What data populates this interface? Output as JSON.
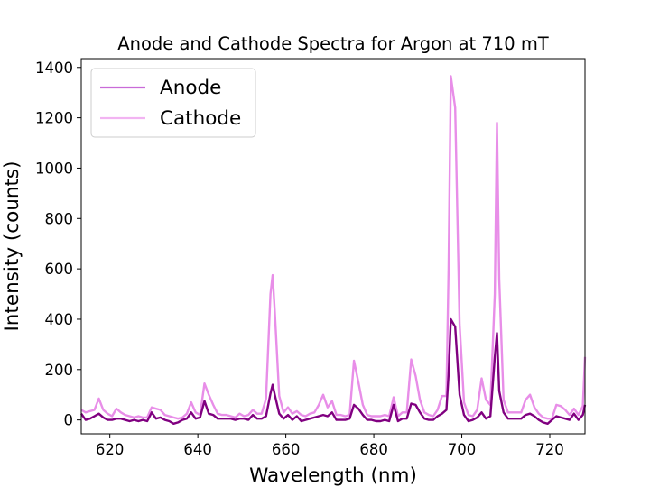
{
  "chart_data": {
    "type": "line",
    "title": "Anode and Cathode Spectra for Argon at 710 mT",
    "xlabel": "Wavelength (nm)",
    "ylabel": "Intensity (counts)",
    "xlim": [
      613.5,
      728
    ],
    "ylim": [
      -55,
      1435
    ],
    "xticks": [
      620,
      640,
      660,
      680,
      700,
      720
    ],
    "yticks": [
      0,
      200,
      400,
      600,
      800,
      1000,
      1200,
      1400
    ],
    "grid": false,
    "legend_position": "top-left",
    "series": [
      {
        "name": "Cathode",
        "color": "#e88ee8",
        "x": [
          613.5,
          614.5,
          615.5,
          616.5,
          617.5,
          618.5,
          619.5,
          620.5,
          621.5,
          622.5,
          623.5,
          624.5,
          625.5,
          626.5,
          627.5,
          628.5,
          629.5,
          630.5,
          631.5,
          632.5,
          633.5,
          634.5,
          635.5,
          636.5,
          637.5,
          638.5,
          639.5,
          640.5,
          641.5,
          642.5,
          643.5,
          644.5,
          645.5,
          646.5,
          647.5,
          648.5,
          649.5,
          650.5,
          651.5,
          652.5,
          653.5,
          654.5,
          655.5,
          656.5,
          657.0,
          657.5,
          658.5,
          659.5,
          660.5,
          661.5,
          662.5,
          663.5,
          664.5,
          665.5,
          666.5,
          667.5,
          668.5,
          669.5,
          670.5,
          671.5,
          672.5,
          673.5,
          674.5,
          675.5,
          676.5,
          677.5,
          678.5,
          679.5,
          680.5,
          681.5,
          682.5,
          683.5,
          684.5,
          685.5,
          686.5,
          687.5,
          688.5,
          689.5,
          690.5,
          691.5,
          692.5,
          693.5,
          694.5,
          695.5,
          696.5,
          697.0,
          697.5,
          698.5,
          699.5,
          700.5,
          701.5,
          702.5,
          703.5,
          704.5,
          705.5,
          706.5,
          707.5,
          708.0,
          708.5,
          709.5,
          710.5,
          711.5,
          712.5,
          713.5,
          714.5,
          715.5,
          716.5,
          717.5,
          718.5,
          719.5,
          720.5,
          721.5,
          722.5,
          723.5,
          724.5,
          725.5,
          726.5,
          727.5,
          728.0
        ],
        "y": [
          40,
          30,
          35,
          40,
          85,
          40,
          25,
          15,
          45,
          30,
          20,
          15,
          10,
          15,
          10,
          10,
          50,
          45,
          40,
          20,
          15,
          10,
          5,
          10,
          25,
          70,
          30,
          20,
          145,
          100,
          60,
          25,
          20,
          20,
          15,
          10,
          25,
          15,
          20,
          40,
          25,
          25,
          85,
          500,
          575,
          430,
          95,
          30,
          50,
          25,
          35,
          20,
          15,
          25,
          30,
          60,
          100,
          50,
          75,
          20,
          20,
          15,
          20,
          235,
          150,
          60,
          20,
          15,
          15,
          15,
          20,
          15,
          90,
          15,
          30,
          30,
          240,
          175,
          80,
          30,
          20,
          15,
          40,
          95,
          95,
          600,
          1365,
          1240,
          380,
          70,
          20,
          15,
          40,
          165,
          80,
          60,
          500,
          1180,
          560,
          80,
          30,
          30,
          30,
          30,
          80,
          100,
          50,
          25,
          10,
          5,
          5,
          60,
          55,
          40,
          20,
          45,
          20,
          55,
          250
        ]
      },
      {
        "name": "Anode",
        "color": "#800080",
        "x": [
          613.5,
          614.5,
          615.5,
          616.5,
          617.5,
          618.5,
          619.5,
          620.5,
          621.5,
          622.5,
          623.5,
          624.5,
          625.5,
          626.5,
          627.5,
          628.5,
          629.5,
          630.5,
          631.5,
          632.5,
          633.5,
          634.5,
          635.5,
          636.5,
          637.5,
          638.5,
          639.5,
          640.5,
          641.5,
          642.5,
          643.5,
          644.5,
          645.5,
          646.5,
          647.5,
          648.5,
          649.5,
          650.5,
          651.5,
          652.5,
          653.5,
          654.5,
          655.5,
          656.5,
          657.0,
          657.5,
          658.5,
          659.5,
          660.5,
          661.5,
          662.5,
          663.5,
          664.5,
          665.5,
          666.5,
          667.5,
          668.5,
          669.5,
          670.5,
          671.5,
          672.5,
          673.5,
          674.5,
          675.5,
          676.5,
          677.5,
          678.5,
          679.5,
          680.5,
          681.5,
          682.5,
          683.5,
          684.5,
          685.5,
          686.5,
          687.5,
          688.5,
          689.5,
          690.5,
          691.5,
          692.5,
          693.5,
          694.5,
          695.5,
          696.5,
          697.0,
          697.5,
          698.5,
          699.5,
          700.5,
          701.5,
          702.5,
          703.5,
          704.5,
          705.5,
          706.5,
          707.5,
          708.0,
          708.5,
          709.5,
          710.5,
          711.5,
          712.5,
          713.5,
          714.5,
          715.5,
          716.5,
          717.5,
          718.5,
          719.5,
          720.5,
          721.5,
          722.5,
          723.5,
          724.5,
          725.5,
          726.5,
          727.5,
          728.0
        ],
        "y": [
          25,
          0,
          5,
          15,
          25,
          10,
          0,
          0,
          5,
          5,
          0,
          -5,
          0,
          -5,
          0,
          -5,
          30,
          5,
          10,
          0,
          -5,
          -15,
          -10,
          0,
          5,
          30,
          5,
          10,
          75,
          25,
          20,
          5,
          5,
          5,
          5,
          0,
          5,
          5,
          0,
          20,
          5,
          5,
          15,
          105,
          140,
          100,
          25,
          5,
          20,
          0,
          15,
          -5,
          0,
          5,
          10,
          15,
          20,
          15,
          30,
          0,
          0,
          0,
          5,
          60,
          45,
          20,
          0,
          0,
          -5,
          -5,
          0,
          -5,
          60,
          -5,
          5,
          5,
          65,
          60,
          30,
          5,
          0,
          0,
          15,
          25,
          40,
          180,
          400,
          370,
          100,
          20,
          -5,
          0,
          10,
          30,
          5,
          15,
          250,
          345,
          115,
          30,
          5,
          5,
          5,
          5,
          20,
          25,
          15,
          0,
          -10,
          -15,
          0,
          15,
          10,
          5,
          0,
          25,
          0,
          20,
          60
        ]
      }
    ]
  }
}
